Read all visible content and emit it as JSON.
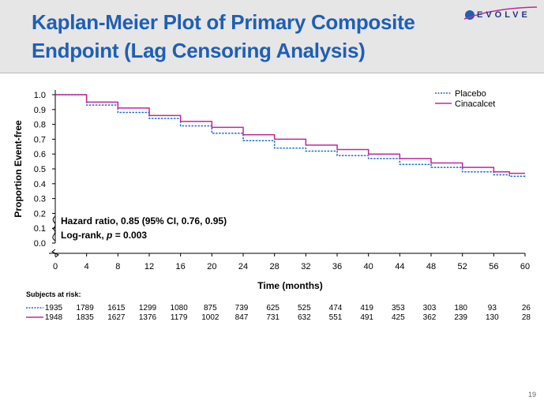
{
  "slide": {
    "title": "Kaplan-Meier Plot of Primary Composite Endpoint (Lag Censoring Analysis)",
    "logo_text": "EVOLVE",
    "page_number": "19"
  },
  "colors": {
    "title": "#1f5fb4",
    "placebo": "#1f6fc2",
    "cinacalcet": "#c0289a",
    "header_bg": "#e6e6e6"
  },
  "chart_data": {
    "type": "line",
    "xlabel": "Time (months)",
    "ylabel": "Proportion Event-free",
    "xlim": [
      0,
      60
    ],
    "ylim": [
      0.0,
      1.0
    ],
    "x_ticks": [
      "0",
      "4",
      "8",
      "12",
      "16",
      "20",
      "24",
      "28",
      "32",
      "36",
      "40",
      "44",
      "48",
      "52",
      "56",
      "60"
    ],
    "y_ticks": [
      "0.0",
      "0.1",
      "0.2",
      "0.3",
      "0.4",
      "0.5",
      "0.6",
      "0.7",
      "0.8",
      "0.9",
      "1.0"
    ],
    "legend_position": "top-right",
    "series": [
      {
        "name": "Placebo",
        "style": "dotted",
        "x": [
          0,
          4,
          8,
          12,
          16,
          20,
          24,
          28,
          32,
          36,
          40,
          44,
          48,
          52,
          56,
          58,
          60
        ],
        "y": [
          1.0,
          0.93,
          0.88,
          0.84,
          0.79,
          0.74,
          0.69,
          0.64,
          0.62,
          0.59,
          0.57,
          0.53,
          0.51,
          0.48,
          0.46,
          0.45,
          0.44
        ]
      },
      {
        "name": "Cinacalcet",
        "style": "solid",
        "x": [
          0,
          4,
          8,
          12,
          16,
          20,
          24,
          28,
          32,
          36,
          40,
          44,
          48,
          52,
          56,
          58,
          60
        ],
        "y": [
          1.0,
          0.95,
          0.91,
          0.86,
          0.82,
          0.78,
          0.73,
          0.7,
          0.66,
          0.63,
          0.6,
          0.57,
          0.54,
          0.51,
          0.48,
          0.47,
          0.47
        ]
      }
    ],
    "annotation": {
      "hr_text": "Hazard ratio, 0.85 (95% CI, 0.76, 0.95)",
      "logrank_prefix": "Log-rank, ",
      "logrank_p": "p",
      "logrank_suffix": " = 0.003"
    },
    "risk_table": {
      "title": "Subjects at risk:",
      "rows": [
        {
          "series": "Placebo",
          "style": "dotted",
          "values": [
            "1935",
            "1789",
            "1615",
            "1299",
            "1080",
            "875",
            "739",
            "625",
            "525",
            "474",
            "419",
            "353",
            "303",
            "180",
            "93",
            "26"
          ]
        },
        {
          "series": "Cinacalcet",
          "style": "solid",
          "values": [
            "1948",
            "1835",
            "1627",
            "1376",
            "1179",
            "1002",
            "847",
            "731",
            "632",
            "551",
            "491",
            "425",
            "362",
            "239",
            "130",
            "28"
          ]
        }
      ]
    }
  }
}
